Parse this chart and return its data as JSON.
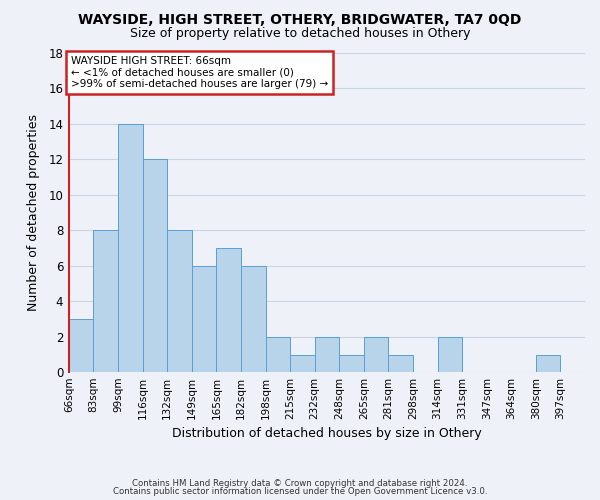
{
  "title": "WAYSIDE, HIGH STREET, OTHERY, BRIDGWATER, TA7 0QD",
  "subtitle": "Size of property relative to detached houses in Othery",
  "xlabel": "Distribution of detached houses by size in Othery",
  "ylabel": "Number of detached properties",
  "footer_line1": "Contains HM Land Registry data © Crown copyright and database right 2024.",
  "footer_line2": "Contains public sector information licensed under the Open Government Licence v3.0.",
  "bin_labels": [
    "66sqm",
    "83sqm",
    "99sqm",
    "116sqm",
    "132sqm",
    "149sqm",
    "165sqm",
    "182sqm",
    "198sqm",
    "215sqm",
    "232sqm",
    "248sqm",
    "265sqm",
    "281sqm",
    "298sqm",
    "314sqm",
    "331sqm",
    "347sqm",
    "364sqm",
    "380sqm",
    "397sqm"
  ],
  "bar_values": [
    3,
    8,
    14,
    12,
    8,
    6,
    7,
    6,
    2,
    1,
    2,
    1,
    2,
    1,
    0,
    2,
    0,
    0,
    0,
    1,
    0
  ],
  "bar_color": "#b8d4ea",
  "bar_edge_color": "#5a9fd4",
  "ylim": [
    0,
    18
  ],
  "yticks": [
    0,
    2,
    4,
    6,
    8,
    10,
    12,
    14,
    16,
    18
  ],
  "annotation_title": "WAYSIDE HIGH STREET: 66sqm",
  "annotation_line1": "← <1% of detached houses are smaller (0)",
  "annotation_line2": ">99% of semi-detached houses are larger (79) →",
  "annotation_box_color": "#ffffff",
  "annotation_border_color": "#cc2222",
  "grid_color": "#c8d4e4",
  "background_color": "#eef2f8",
  "spine_color": "#cc2222"
}
